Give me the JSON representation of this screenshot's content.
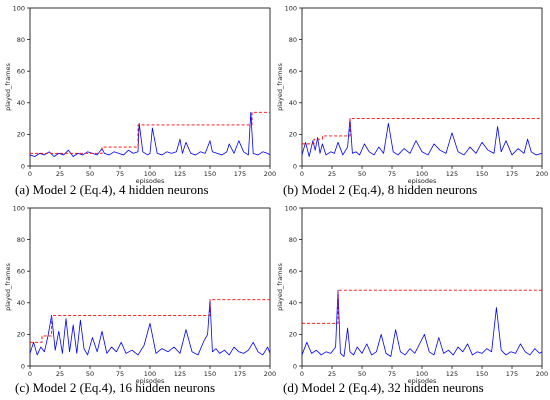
{
  "chart_data": [
    {
      "type": "line",
      "caption": "(a) Model 2 (Eq.4), 4 hidden neurons",
      "xlabel": "episodes",
      "ylabel": "played_frames",
      "xlim": [
        0,
        200
      ],
      "ylim": [
        0,
        100
      ],
      "xticks": [
        0,
        25,
        50,
        75,
        100,
        125,
        150,
        175,
        200
      ],
      "yticks": [
        0,
        20,
        40,
        60,
        80,
        100
      ],
      "grid": false,
      "series": [
        {
          "style": "solid",
          "color": "#0000ff",
          "x": [
            0,
            4,
            8,
            12,
            16,
            20,
            24,
            28,
            32,
            36,
            40,
            44,
            48,
            52,
            56,
            60,
            62,
            66,
            70,
            74,
            78,
            82,
            86,
            90,
            91,
            94,
            98,
            100,
            102,
            106,
            110,
            114,
            118,
            122,
            125,
            127,
            130,
            134,
            138,
            142,
            146,
            150,
            152,
            156,
            160,
            164,
            166,
            170,
            174,
            178,
            182,
            184,
            186,
            190,
            194,
            198,
            200
          ],
          "y": [
            7,
            6,
            8,
            7,
            9,
            6,
            8,
            7,
            10,
            6,
            8,
            7,
            9,
            8,
            7,
            11,
            8,
            7,
            9,
            8,
            7,
            10,
            8,
            9,
            27,
            9,
            7,
            8,
            24,
            8,
            7,
            9,
            8,
            9,
            17,
            8,
            15,
            8,
            7,
            9,
            8,
            16,
            9,
            8,
            7,
            9,
            14,
            8,
            16,
            9,
            7,
            34,
            8,
            7,
            9,
            8,
            7
          ]
        },
        {
          "style": "dashed",
          "color": "#ff0000",
          "x": [
            0,
            60,
            60,
            90,
            90,
            185,
            185,
            200
          ],
          "y": [
            8,
            8,
            12,
            12,
            26,
            26,
            34,
            34
          ]
        }
      ]
    },
    {
      "type": "line",
      "caption": "(b) Model 2 (Eq.4), 8 hidden neurons",
      "xlabel": "episodes",
      "ylabel": "played_frames",
      "xlim": [
        0,
        200
      ],
      "ylim": [
        0,
        100
      ],
      "xticks": [
        0,
        25,
        50,
        75,
        100,
        125,
        150,
        175,
        200
      ],
      "yticks": [
        0,
        20,
        40,
        60,
        80,
        100
      ],
      "grid": false,
      "series": [
        {
          "style": "solid",
          "color": "#0000ff",
          "x": [
            0,
            3,
            6,
            9,
            11,
            13,
            15,
            17,
            20,
            24,
            27,
            30,
            34,
            38,
            40,
            42,
            45,
            48,
            52,
            56,
            60,
            64,
            68,
            72,
            76,
            80,
            85,
            90,
            95,
            100,
            105,
            110,
            115,
            120,
            125,
            130,
            135,
            140,
            145,
            150,
            155,
            160,
            163,
            166,
            170,
            175,
            180,
            185,
            188,
            191,
            195,
            200
          ],
          "y": [
            7,
            15,
            6,
            16,
            10,
            18,
            8,
            14,
            7,
            9,
            8,
            15,
            7,
            12,
            30,
            8,
            9,
            7,
            14,
            9,
            7,
            12,
            8,
            27,
            9,
            7,
            11,
            8,
            16,
            9,
            7,
            14,
            10,
            8,
            21,
            9,
            7,
            12,
            8,
            15,
            10,
            8,
            25,
            9,
            16,
            7,
            11,
            8,
            17,
            9,
            7,
            8
          ]
        },
        {
          "style": "dashed",
          "color": "#ff0000",
          "x": [
            0,
            10,
            10,
            17,
            17,
            40,
            40,
            200
          ],
          "y": [
            14,
            14,
            17,
            17,
            19,
            19,
            30,
            30
          ]
        }
      ]
    },
    {
      "type": "line",
      "caption": "(c) Model 2 (Eq.4), 16 hidden neurons",
      "xlabel": "episodes",
      "ylabel": "played_frames",
      "xlim": [
        0,
        200
      ],
      "ylim": [
        0,
        100
      ],
      "xticks": [
        0,
        25,
        50,
        75,
        100,
        125,
        150,
        175,
        200
      ],
      "yticks": [
        0,
        20,
        40,
        60,
        80,
        100
      ],
      "grid": false,
      "series": [
        {
          "style": "solid",
          "color": "#0000ff",
          "x": [
            0,
            3,
            6,
            9,
            12,
            15,
            18,
            21,
            24,
            27,
            30,
            33,
            36,
            39,
            42,
            45,
            48,
            52,
            56,
            60,
            64,
            68,
            72,
            76,
            80,
            85,
            90,
            95,
            100,
            105,
            110,
            115,
            120,
            125,
            130,
            135,
            140,
            145,
            148,
            150,
            152,
            155,
            158,
            162,
            166,
            170,
            174,
            178,
            182,
            186,
            190,
            194,
            198,
            200
          ],
          "y": [
            8,
            15,
            7,
            12,
            9,
            19,
            32,
            10,
            22,
            8,
            30,
            9,
            26,
            8,
            29,
            11,
            7,
            18,
            9,
            22,
            8,
            12,
            9,
            15,
            8,
            10,
            7,
            13,
            27,
            8,
            11,
            9,
            12,
            8,
            23,
            9,
            7,
            16,
            20,
            42,
            9,
            11,
            8,
            10,
            7,
            12,
            9,
            8,
            10,
            15,
            9,
            7,
            12,
            8
          ]
        },
        {
          "style": "dashed",
          "color": "#ff0000",
          "x": [
            0,
            10,
            10,
            18,
            18,
            150,
            150,
            200
          ],
          "y": [
            15,
            15,
            19,
            19,
            32,
            32,
            42,
            42
          ]
        }
      ]
    },
    {
      "type": "line",
      "caption": "(d) Model 2 (Eq.4), 32 hidden neurons",
      "xlabel": "episodes",
      "ylabel": "played_frames",
      "xlim": [
        0,
        200
      ],
      "ylim": [
        0,
        100
      ],
      "xticks": [
        0,
        25,
        50,
        75,
        100,
        125,
        150,
        175,
        200
      ],
      "yticks": [
        0,
        20,
        40,
        60,
        80,
        100
      ],
      "grid": false,
      "series": [
        {
          "style": "solid",
          "color": "#0000ff",
          "x": [
            0,
            4,
            8,
            12,
            16,
            20,
            24,
            28,
            30,
            32,
            35,
            38,
            40,
            43,
            46,
            50,
            54,
            58,
            62,
            66,
            70,
            74,
            78,
            82,
            86,
            90,
            94,
            98,
            102,
            106,
            110,
            114,
            118,
            122,
            126,
            130,
            134,
            138,
            142,
            146,
            150,
            154,
            158,
            162,
            166,
            170,
            174,
            178,
            182,
            186,
            190,
            194,
            198,
            200
          ],
          "y": [
            7,
            15,
            8,
            10,
            7,
            9,
            8,
            12,
            48,
            8,
            6,
            24,
            9,
            7,
            12,
            8,
            14,
            7,
            9,
            20,
            8,
            6,
            23,
            9,
            7,
            11,
            8,
            14,
            20,
            9,
            7,
            18,
            8,
            10,
            7,
            12,
            9,
            14,
            7,
            9,
            8,
            11,
            9,
            37,
            10,
            7,
            9,
            8,
            14,
            9,
            7,
            11,
            8,
            9
          ]
        },
        {
          "style": "dashed",
          "color": "#ff0000",
          "x": [
            0,
            30,
            30,
            200
          ],
          "y": [
            27,
            27,
            48,
            48
          ]
        }
      ]
    }
  ]
}
